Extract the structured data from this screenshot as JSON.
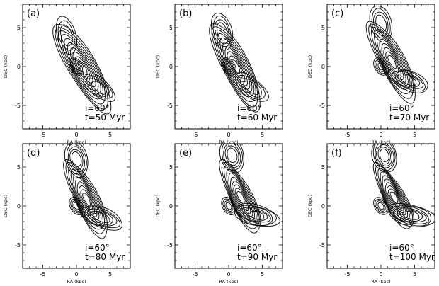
{
  "figure": {
    "panels": [
      {
        "label": "(a)",
        "annot": [
          "i=60°",
          "t=50 Myr"
        ],
        "xlabel": "RA (kpc)",
        "ylabel": "DEC (kpc)"
      },
      {
        "label": "(b)",
        "annot": [
          "i=60°",
          "t=60 Myr"
        ],
        "xlabel": "RA (kpc)",
        "ylabel": "DEC (kpc)"
      },
      {
        "label": "(c)",
        "annot": [
          "i=60°",
          "t=70 Myr"
        ],
        "xlabel": "RA (kpc)",
        "ylabel": "DEC (kpc)"
      },
      {
        "label": "(d)",
        "annot": [
          "i=60°",
          "t=80 Myr"
        ],
        "xlabel": "RA (kpc)",
        "ylabel": "DEC (kpc)"
      },
      {
        "label": "(e)",
        "annot": [
          "i=60°",
          "t=90 Myr"
        ],
        "xlabel": "RA (kpc)",
        "ylabel": "DEC (kpc)"
      },
      {
        "label": "(f)",
        "annot": [
          "i=60°",
          "t=100 Myr"
        ],
        "xlabel": "RA (kpc)",
        "ylabel": "DEC (kpc)"
      }
    ],
    "x_ticks": [
      "-5",
      "0",
      "5"
    ],
    "y_ticks": [
      "5",
      "0",
      "-5"
    ]
  },
  "chart_data": [
    {
      "type": "contour",
      "label": "(a)",
      "inclination_deg": 60,
      "time_myr": 50,
      "xlim": [
        -8,
        8
      ],
      "ylim": [
        -8,
        8
      ],
      "xlabel": "RA (kpc)",
      "ylabel": "DEC (kpc)",
      "x_ticks": [
        -5,
        0,
        5
      ],
      "y_ticks": [
        -5,
        0,
        5
      ],
      "features": {
        "north_clump_center": [
          -1.5,
          4.0
        ],
        "tail_end": [
          4.5,
          -4.5
        ]
      }
    },
    {
      "type": "contour",
      "label": "(b)",
      "inclination_deg": 60,
      "time_myr": 60,
      "xlim": [
        -8,
        8
      ],
      "ylim": [
        -8,
        8
      ],
      "xlabel": "RA (kpc)",
      "ylabel": "DEC (kpc)",
      "x_ticks": [
        -5,
        0,
        5
      ],
      "y_ticks": [
        -5,
        0,
        5
      ],
      "features": {
        "north_clump_center": [
          -1.0,
          4.5
        ],
        "tail_end": [
          4.5,
          -4.5
        ]
      }
    },
    {
      "type": "contour",
      "label": "(c)",
      "inclination_deg": 60,
      "time_myr": 70,
      "xlim": [
        -8,
        8
      ],
      "ylim": [
        -8,
        8
      ],
      "xlabel": "RA (kpc)",
      "ylabel": "DEC (kpc)",
      "x_ticks": [
        -5,
        0,
        5
      ],
      "y_ticks": [
        -5,
        0,
        5
      ],
      "features": {
        "north_clump_center": [
          0.0,
          5.5
        ],
        "tail_end": [
          5.5,
          -3.0
        ]
      }
    },
    {
      "type": "contour",
      "label": "(d)",
      "inclination_deg": 60,
      "time_myr": 80,
      "xlim": [
        -8,
        8
      ],
      "ylim": [
        -8,
        8
      ],
      "xlabel": "RA (kpc)",
      "ylabel": "DEC (kpc)",
      "x_ticks": [
        -5,
        0,
        5
      ],
      "y_ticks": [
        -5,
        0,
        5
      ],
      "features": {
        "north_clump_center": [
          0.0,
          6.0
        ],
        "tail_end": [
          5.0,
          -2.5
        ]
      }
    },
    {
      "type": "contour",
      "label": "(e)",
      "inclination_deg": 60,
      "time_myr": 90,
      "xlim": [
        -8,
        8
      ],
      "ylim": [
        -8,
        8
      ],
      "xlabel": "RA (kpc)",
      "ylabel": "DEC (kpc)",
      "x_ticks": [
        -5,
        0,
        5
      ],
      "y_ticks": [
        -5,
        0,
        5
      ],
      "features": {
        "north_clump_center": [
          0.5,
          6.5
        ],
        "tail_end": [
          5.5,
          -2.0
        ]
      }
    },
    {
      "type": "contour",
      "label": "(f)",
      "inclination_deg": 60,
      "time_myr": 100,
      "xlim": [
        -8,
        8
      ],
      "ylim": [
        -8,
        8
      ],
      "xlabel": "RA (kpc)",
      "ylabel": "DEC (kpc)",
      "x_ticks": [
        -5,
        0,
        5
      ],
      "y_ticks": [
        -5,
        0,
        5
      ],
      "features": {
        "north_clump_center": [
          0.5,
          6.5
        ],
        "tail_end": [
          6.0,
          -2.0
        ]
      }
    }
  ]
}
